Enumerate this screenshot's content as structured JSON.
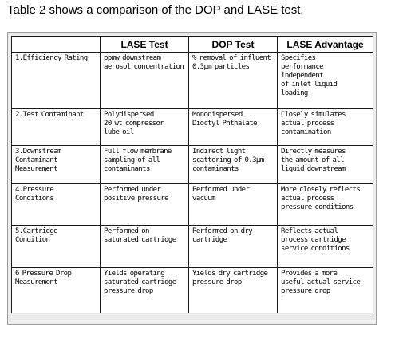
{
  "intro": "Table 2 shows a comparison of the DOP and LASE test.",
  "table": {
    "headers": [
      "",
      "LASE Test",
      "DOP Test",
      "LASE Advantage"
    ],
    "rows": [
      {
        "criterion": "1.Efficiency Rating",
        "lase": "ppmw downstream\naerosol concentration",
        "dop": "% removal of influent\n0.3μm particles",
        "advantage": "Specifies\nperformance\nindependent\nof inlet liquid\nloading"
      },
      {
        "criterion": "2.Test Contaminant",
        "lase": "Polydispersed\n20 wt compressor\nlube oil",
        "dop": "Monodispersed\nDioctyl Phthalate",
        "advantage": "Closely simulates\nactual process\ncontamination"
      },
      {
        "criterion": "3.Downstream\nContaminant\nMeasurement",
        "lase": "Full flow membrane\nsampling of all\ncontaminants",
        "dop": "Indirect light\nscattering of 0.3μm\ncontaminants",
        "advantage": "Directly measures\nthe amount of all\nliquid downstream"
      },
      {
        "criterion": "4.Pressure\nConditions",
        "lase": "Performed under\npositive pressure",
        "dop": "Performed under\nvacuum",
        "advantage": "More closely reflects\nactual process\npressure conditions"
      },
      {
        "criterion": "5.Cartridge\nCondition",
        "lase": "Performed on\nsaturated cartridge",
        "dop": "Performed on dry\ncartridge",
        "advantage": "Reflects actual\nprocess cartridge\nservice conditions"
      },
      {
        "criterion": "6 Pressure Drop\nMeasurement",
        "lase": "Yields operating\nsaturated cartridge\npressure drop",
        "dop": "Yields dry cartridge\npressure drop",
        "advantage": "Provides a more\nuseful actual service\npressure drop"
      }
    ]
  }
}
